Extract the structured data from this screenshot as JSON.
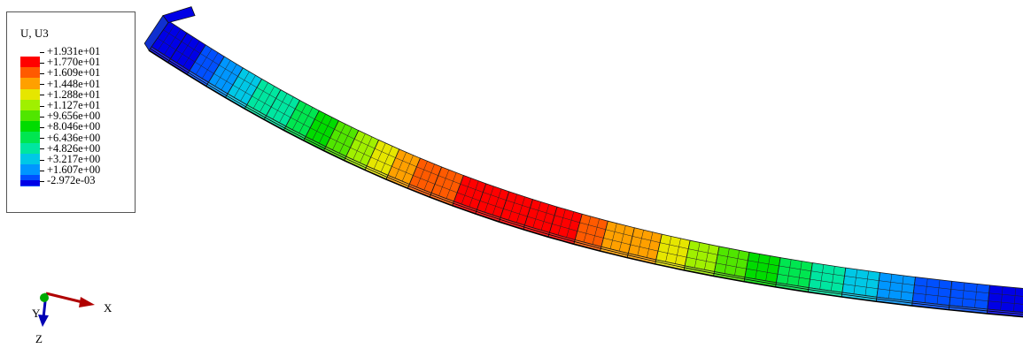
{
  "legend": {
    "title": "U, U3",
    "levels": [
      {
        "label": "+1.931e+01",
        "color": "#ff0000"
      },
      {
        "label": "+1.770e+01",
        "color": "#ff5a00"
      },
      {
        "label": "+1.609e+01",
        "color": "#ffa000"
      },
      {
        "label": "+1.448e+01",
        "color": "#e6e600"
      },
      {
        "label": "+1.288e+01",
        "color": "#a0f000"
      },
      {
        "label": "+1.127e+01",
        "color": "#50e600"
      },
      {
        "label": "+9.656e+00",
        "color": "#00dc00"
      },
      {
        "label": "+8.046e+00",
        "color": "#00e650"
      },
      {
        "label": "+6.436e+00",
        "color": "#00e6a0"
      },
      {
        "label": "+4.826e+00",
        "color": "#00c8e6"
      },
      {
        "label": "+3.217e+00",
        "color": "#0096ff"
      },
      {
        "label": "+1.607e+00",
        "color": "#0050ff"
      },
      {
        "label": "-2.972e-03",
        "color": "#0000e6"
      }
    ]
  },
  "triad": {
    "x_label": "X",
    "y_label": "Y",
    "z_label": "Z",
    "x_color": "#b00000",
    "y_color": "#00aa00",
    "z_color": "#0000b4"
  },
  "beam": {
    "u3_profile": [
      0.0,
      0.6,
      2.0,
      4.0,
      5.8,
      7.6,
      9.4,
      11.4,
      13.4,
      15.4,
      17.2,
      18.6,
      19.3,
      19.3,
      19.0,
      18.0,
      16.5,
      14.8,
      13.0,
      11.2,
      9.2,
      7.0,
      4.8,
      2.6,
      0.8,
      0.0
    ],
    "u3_max": 19.31
  }
}
